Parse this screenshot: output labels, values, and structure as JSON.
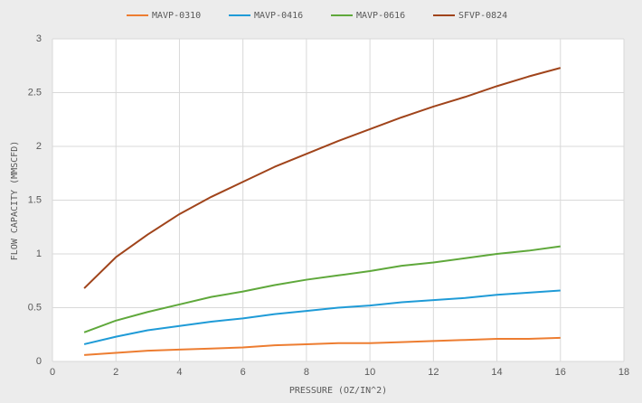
{
  "chart_data": {
    "type": "line",
    "x_label": "PRESSURE (OZ/IN^2)",
    "y_label": "FLOW CAPACITY (MMSCFD)",
    "x": [
      1,
      2,
      3,
      4,
      5,
      6,
      7,
      8,
      9,
      10,
      11,
      12,
      13,
      14,
      15,
      16
    ],
    "series": [
      {
        "name": "MAVP-0310",
        "color": "#ed7d31",
        "values": [
          0.06,
          0.08,
          0.1,
          0.11,
          0.12,
          0.13,
          0.15,
          0.16,
          0.17,
          0.17,
          0.18,
          0.19,
          0.2,
          0.21,
          0.21,
          0.22
        ]
      },
      {
        "name": "MAVP-0416",
        "color": "#1f9bd7",
        "values": [
          0.16,
          0.23,
          0.29,
          0.33,
          0.37,
          0.4,
          0.44,
          0.47,
          0.5,
          0.52,
          0.55,
          0.57,
          0.59,
          0.62,
          0.64,
          0.66
        ]
      },
      {
        "name": "MAVP-0616",
        "color": "#5fa83b",
        "values": [
          0.27,
          0.38,
          0.46,
          0.53,
          0.6,
          0.65,
          0.71,
          0.76,
          0.8,
          0.84,
          0.89,
          0.92,
          0.96,
          1.0,
          1.03,
          1.07
        ]
      },
      {
        "name": "SFVP-0824",
        "color": "#a0441b",
        "values": [
          0.68,
          0.97,
          1.18,
          1.37,
          1.53,
          1.67,
          1.81,
          1.93,
          2.05,
          2.16,
          2.27,
          2.37,
          2.46,
          2.56,
          2.65,
          2.73
        ]
      }
    ],
    "xlim": [
      0,
      18
    ],
    "xticks": [
      0,
      2,
      4,
      6,
      8,
      10,
      12,
      14,
      16,
      18
    ],
    "ylim": [
      0,
      3
    ],
    "yticks": [
      0,
      0.5,
      1,
      1.5,
      2,
      2.5,
      3
    ],
    "grid": true
  }
}
